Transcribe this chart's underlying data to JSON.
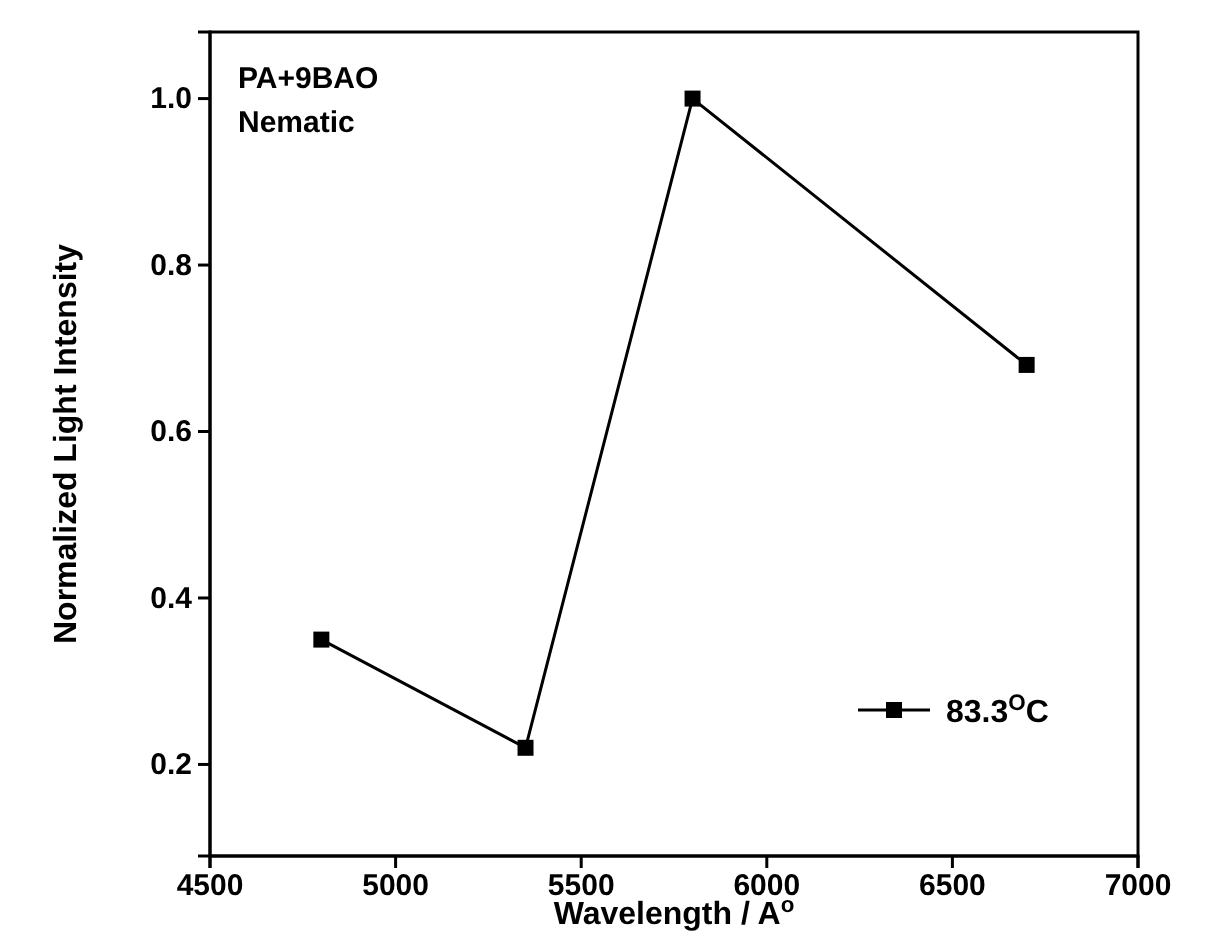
{
  "chart_data": {
    "type": "line",
    "xlabel": "Wavelength / A$^{o}$",
    "ylabel": "Normalized Light Intensity",
    "annotations": [
      "PA+9BAO",
      "Nematic"
    ],
    "x": [
      4800,
      5350,
      5800,
      6700
    ],
    "series": [
      {
        "name": "83.3$^{O}$C",
        "color": "#000000",
        "values": [
          0.35,
          0.22,
          1.0,
          0.68
        ]
      }
    ],
    "xlim": [
      4500,
      7000
    ],
    "xticks": [
      4500,
      5000,
      5500,
      6000,
      6500,
      7000
    ],
    "ylim": [
      0.09,
      1.08
    ],
    "yticks": [
      0.2,
      0.4,
      0.6,
      0.8,
      {
        "value": 1,
        "label": "1.0"
      }
    ],
    "marker": "square",
    "line_style": "solid",
    "legend": "bottom right"
  }
}
